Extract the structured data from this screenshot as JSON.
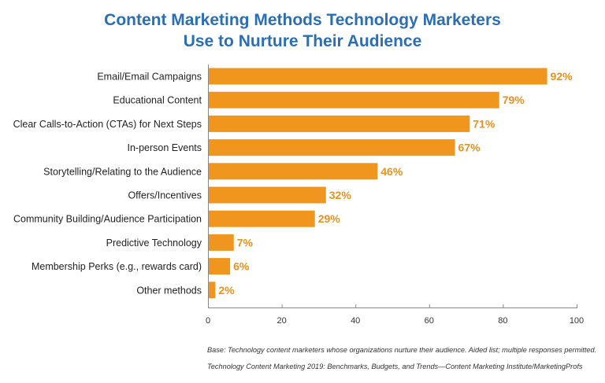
{
  "chart_data": {
    "type": "bar",
    "orientation": "horizontal",
    "title_lines": [
      "Content Marketing Methods Technology Marketers",
      "Use to Nurture Their Audience"
    ],
    "categories": [
      "Email/Email Campaigns",
      "Educational Content",
      "Clear Calls-to-Action (CTAs) for Next Steps",
      "In-person Events",
      "Storytelling/Relating to the Audience",
      "Offers/Incentives",
      "Community Building/Audience Participation",
      "Predictive Technology",
      "Membership Perks (e.g., rewards card)",
      "Other methods"
    ],
    "values": [
      92,
      79,
      71,
      67,
      46,
      32,
      29,
      7,
      6,
      2
    ],
    "value_labels": [
      "92%",
      "79%",
      "71%",
      "67%",
      "46%",
      "32%",
      "29%",
      "7%",
      "6%",
      "2%"
    ],
    "xlim": [
      0,
      100
    ],
    "xticks": [
      0,
      20,
      40,
      60,
      80,
      100
    ],
    "xlabel": "",
    "ylabel": "",
    "grid": false,
    "colors": {
      "bar": "#f0961e",
      "value_label": "#e8921e",
      "title": "#2a6fb3",
      "axis": "#888888"
    }
  },
  "footnotes": {
    "base": "Base: Technology content marketers whose organizations nurture their audience. Aided list; multiple responses permitted.",
    "source": "Technology Content Marketing 2019: Benchmarks, Budgets, and Trends—Content Marketing Institute/MarketingProfs"
  }
}
